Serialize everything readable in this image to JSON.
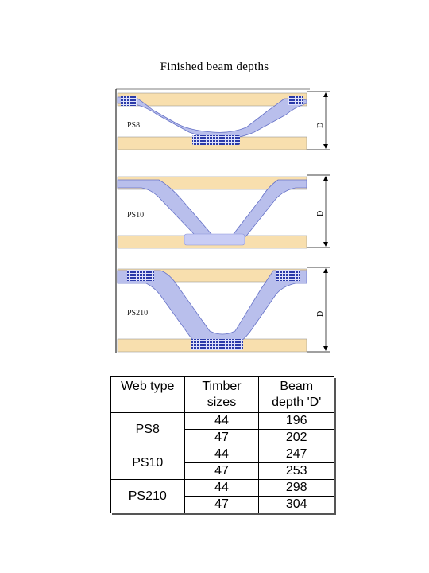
{
  "title": "Finished beam depths",
  "diagram": {
    "webs": [
      {
        "label": "PS8",
        "dimension": "D"
      },
      {
        "label": "PS10",
        "dimension": "D"
      },
      {
        "label": "PS210",
        "dimension": "D"
      }
    ],
    "colors": {
      "timber": "#f8dfae",
      "web": "#b9bfec",
      "nail_plate": "#2b3aa8",
      "dim_line": "#000000"
    }
  },
  "table": {
    "headers": {
      "web_type": "Web type",
      "timber_sizes": "Timber sizes",
      "beam_depth": "Beam depth 'D'"
    },
    "rows": [
      {
        "web_type": "PS8",
        "sizes": [
          {
            "timber": "44",
            "depth": "196"
          },
          {
            "timber": "47",
            "depth": "202"
          }
        ]
      },
      {
        "web_type": "PS10",
        "sizes": [
          {
            "timber": "44",
            "depth": "247"
          },
          {
            "timber": "47",
            "depth": "253"
          }
        ]
      },
      {
        "web_type": "PS210",
        "sizes": [
          {
            "timber": "44",
            "depth": "298"
          },
          {
            "timber": "47",
            "depth": "304"
          }
        ]
      }
    ]
  }
}
